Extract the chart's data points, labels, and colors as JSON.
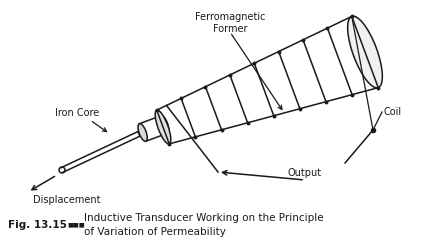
{
  "bg_color": "#ffffff",
  "line_color": "#1a1a1a",
  "fig_width": 4.21,
  "fig_height": 2.4,
  "dpi": 100,
  "label_ferromagnetic": "Ferromagnetic\nFormer",
  "label_iron_core": "Iron Core",
  "label_coil": "Coil",
  "label_output": "Output",
  "label_displacement": "Displacement",
  "caption_bold": "Fig. 13.15",
  "caption_normal": "Inductive Transducer Working on the Principle\nof Variation of Permeability",
  "font_size": 7.0,
  "caption_font_size": 7.5
}
